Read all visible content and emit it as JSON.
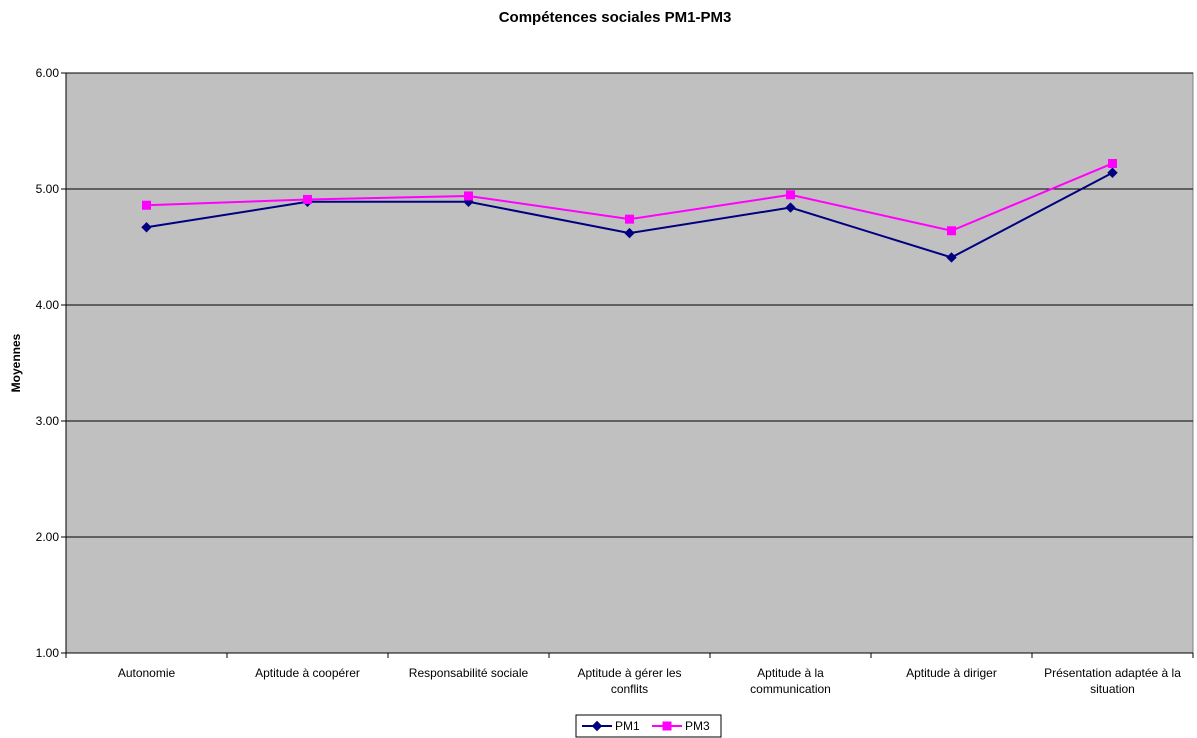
{
  "chart_data": {
    "type": "line",
    "title": "Compétences sociales PM1-PM3",
    "xlabel": "",
    "ylabel": "Moyennes",
    "ylim": [
      1.0,
      6.0
    ],
    "yticks": [
      "1.00",
      "2.00",
      "3.00",
      "4.00",
      "5.00",
      "6.00"
    ],
    "grid": true,
    "legend_position": "bottom",
    "categories": [
      [
        "Autonomie"
      ],
      [
        "Aptitude à coopérer"
      ],
      [
        "Responsabilité sociale"
      ],
      [
        "Aptitude à gérer les",
        "conflits"
      ],
      [
        "Aptitude à la",
        "communication"
      ],
      [
        "Aptitude à diriger"
      ],
      [
        "Présentation adaptée à la",
        "situation"
      ]
    ],
    "series": [
      {
        "name": "PM1",
        "color": "#000080",
        "marker": "diamond",
        "values": [
          4.67,
          4.89,
          4.89,
          4.62,
          4.84,
          4.41,
          5.14
        ]
      },
      {
        "name": "PM3",
        "color": "#FF00FF",
        "marker": "square",
        "values": [
          4.86,
          4.91,
          4.94,
          4.74,
          4.95,
          4.64,
          5.22
        ]
      }
    ],
    "plot_background": "#C0C0C0",
    "gridline_color": "#000000"
  }
}
